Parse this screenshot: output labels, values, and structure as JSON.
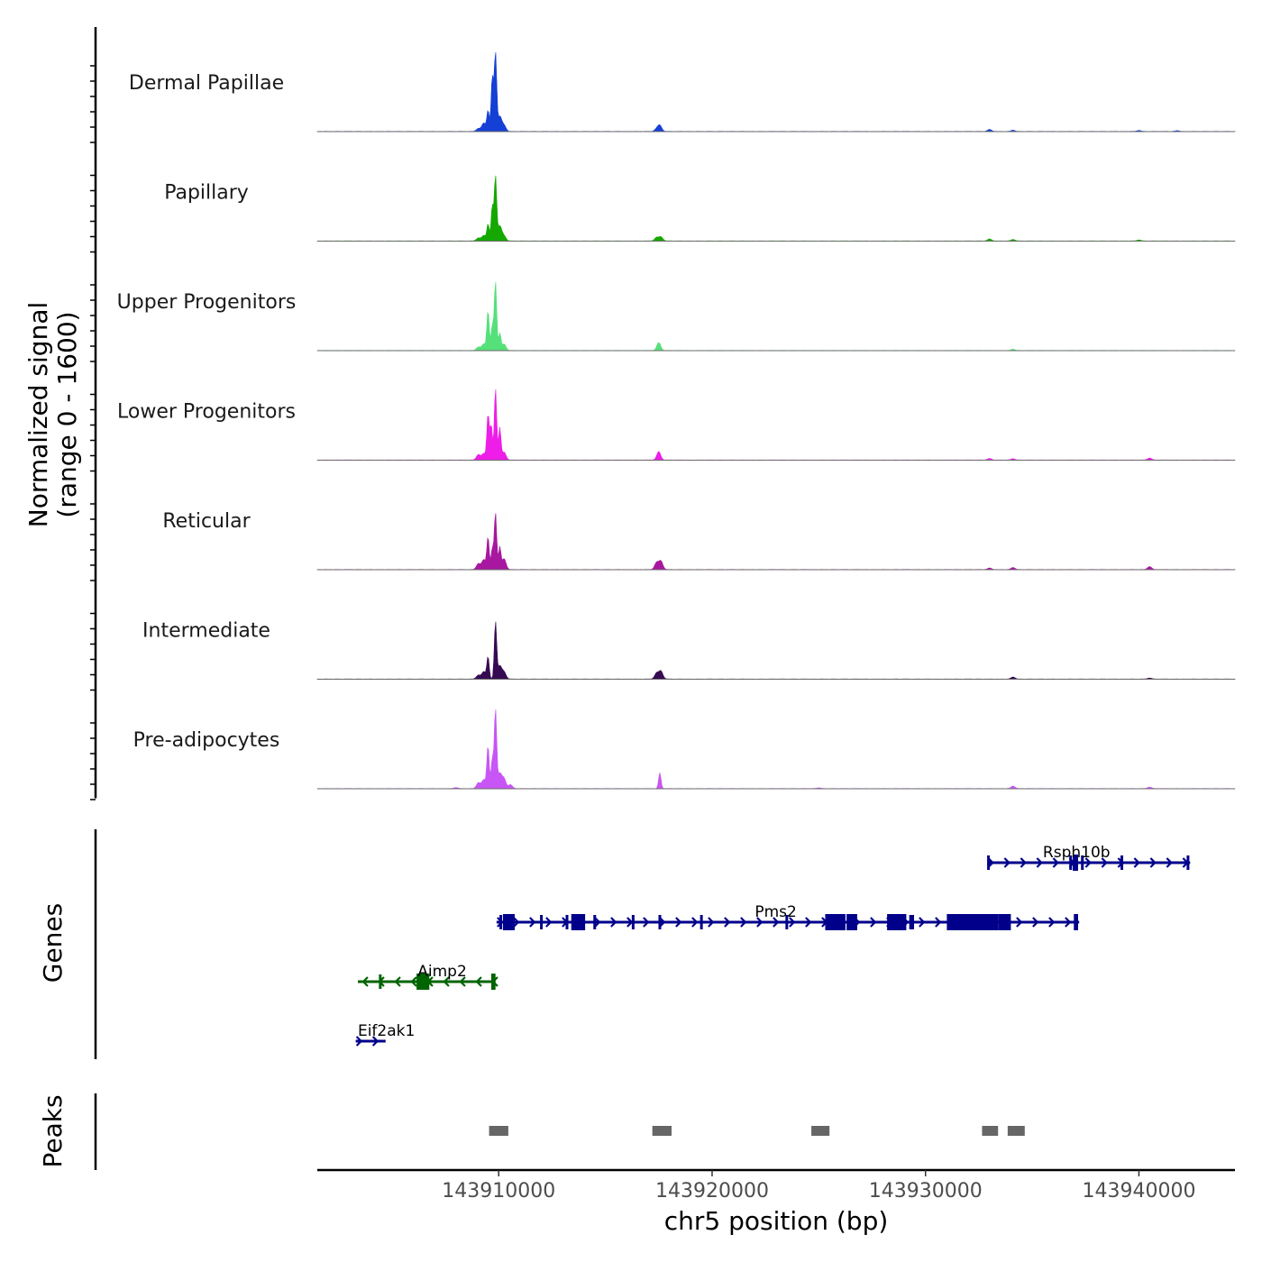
{
  "chart_data": {
    "type": "area",
    "chromosome": "chr5",
    "xlabel": "chr5 position (bp)",
    "xlim": [
      143901500,
      143944500
    ],
    "xticks": [
      143910000,
      143920000,
      143930000,
      143940000
    ],
    "xtick_labels": [
      "143910000",
      "143920000",
      "143930000",
      "143940000"
    ],
    "coverage": {
      "ylabel_line1": "Normalized signal",
      "ylabel_line2": "(range 0 - 1600)",
      "ylim": [
        0,
        1600
      ],
      "tracks": [
        {
          "name": "Dermal Papillae",
          "color": "#1540d6",
          "peaks": [
            [
              143909050,
              60
            ],
            [
              143909300,
              170
            ],
            [
              143909500,
              420
            ],
            [
              143909700,
              1100
            ],
            [
              143909850,
              1600
            ],
            [
              143910050,
              300
            ],
            [
              143910250,
              120
            ],
            [
              143917400,
              50
            ],
            [
              143917550,
              120
            ],
            [
              143933000,
              40
            ],
            [
              143934100,
              25
            ],
            [
              143940000,
              20
            ],
            [
              143941800,
              15
            ]
          ]
        },
        {
          "name": "Papillary",
          "color": "#14a800",
          "peaks": [
            [
              143909050,
              60
            ],
            [
              143909300,
              110
            ],
            [
              143909500,
              340
            ],
            [
              143909700,
              700
            ],
            [
              143909850,
              1300
            ],
            [
              143910050,
              300
            ],
            [
              143910250,
              100
            ],
            [
              143917400,
              70
            ],
            [
              143917600,
              80
            ],
            [
              143933000,
              40
            ],
            [
              143934100,
              30
            ],
            [
              143940000,
              20
            ]
          ]
        },
        {
          "name": "Upper Progenitors",
          "color": "#55e07a",
          "peaks": [
            [
              143909050,
              70
            ],
            [
              143909300,
              130
            ],
            [
              143909500,
              800
            ],
            [
              143909700,
              500
            ],
            [
              143909850,
              1400
            ],
            [
              143910050,
              350
            ],
            [
              143910250,
              130
            ],
            [
              143917500,
              160
            ],
            [
              143934100,
              25
            ]
          ]
        },
        {
          "name": "Lower Progenitors",
          "color": "#ee1ee8",
          "peaks": [
            [
              143909050,
              110
            ],
            [
              143909300,
              130
            ],
            [
              143909500,
              920
            ],
            [
              143909650,
              700
            ],
            [
              143909850,
              1450
            ],
            [
              143910050,
              650
            ],
            [
              143910250,
              160
            ],
            [
              143917500,
              170
            ],
            [
              143933000,
              30
            ],
            [
              143934100,
              25
            ],
            [
              143940500,
              40
            ]
          ]
        },
        {
          "name": "Reticular",
          "color": "#a8179f",
          "peaks": [
            [
              143909050,
              120
            ],
            [
              143909300,
              200
            ],
            [
              143909500,
              650
            ],
            [
              143909700,
              420
            ],
            [
              143909850,
              1150
            ],
            [
              143910050,
              450
            ],
            [
              143910250,
              220
            ],
            [
              143917400,
              140
            ],
            [
              143917600,
              170
            ],
            [
              143933000,
              30
            ],
            [
              143934100,
              40
            ],
            [
              143940500,
              60
            ]
          ]
        },
        {
          "name": "Intermediate",
          "color": "#360a52",
          "peaks": [
            [
              143909050,
              80
            ],
            [
              143909300,
              150
            ],
            [
              143909500,
              450
            ],
            [
              143909850,
              1150
            ],
            [
              143910050,
              260
            ],
            [
              143910250,
              140
            ],
            [
              143917400,
              120
            ],
            [
              143917600,
              160
            ],
            [
              143934100,
              40
            ],
            [
              143940500,
              20
            ]
          ]
        },
        {
          "name": "Pre-adipocytes",
          "color": "#c855f5",
          "peaks": [
            [
              143908000,
              20
            ],
            [
              143909050,
              120
            ],
            [
              143909300,
              180
            ],
            [
              143909500,
              860
            ],
            [
              143909700,
              600
            ],
            [
              143909850,
              1600
            ],
            [
              143910050,
              300
            ],
            [
              143910250,
              200
            ],
            [
              143910550,
              80
            ],
            [
              143917550,
              320
            ],
            [
              143925000,
              15
            ],
            [
              143934100,
              50
            ],
            [
              143940500,
              30
            ]
          ]
        }
      ]
    },
    "genes": {
      "label": "Genes",
      "items": [
        {
          "name": "Rsph10b",
          "strand": "+",
          "color": "#00008b",
          "row": 0,
          "start": 143932900,
          "end": 143942400,
          "label_pos": 143935500,
          "exons": [
            [
              143936900,
              143937150
            ]
          ],
          "ticks": [
            143932950,
            143936800,
            143937350,
            143939200,
            143942300
          ]
        },
        {
          "name": "Pms2",
          "strand": "+",
          "color": "#00008b",
          "row": 1,
          "start": 143909900,
          "end": 143937200,
          "label_pos": 143922000,
          "exons": [
            [
              143910200,
              143910750
            ],
            [
              143913400,
              143914050
            ],
            [
              143925300,
              143926250
            ],
            [
              143926300,
              143926800
            ],
            [
              143928200,
              143929100
            ],
            [
              143931000,
              143933400
            ],
            [
              143933400,
              143934000
            ],
            [
              143936950,
              143937150
            ]
          ],
          "ticks": [
            143910100,
            143912000,
            143913200,
            143914500,
            143916300,
            143917550,
            143919500,
            143923500,
            143929300,
            143929400
          ]
        },
        {
          "name": "Aimp2",
          "strand": "-",
          "color": "#006400",
          "row": 2,
          "start": 143903400,
          "end": 143909850,
          "label_pos": 143906200,
          "exons": [
            [
              143906150,
              143906750
            ],
            [
              143909650,
              143909850
            ]
          ],
          "ticks": [
            143904450
          ]
        },
        {
          "name": "Eif2ak1",
          "strand": "+",
          "color": "#00008b",
          "row": 3,
          "start": 143903300,
          "end": 143904700,
          "label_pos": 143903400,
          "exons": [],
          "ticks": []
        }
      ]
    },
    "peaks": {
      "label": "Peaks",
      "regions": [
        [
          143909550,
          143910450
        ],
        [
          143917200,
          143918100
        ],
        [
          143924650,
          143925500
        ],
        [
          143932650,
          143933400
        ],
        [
          143933850,
          143934650
        ]
      ]
    }
  }
}
